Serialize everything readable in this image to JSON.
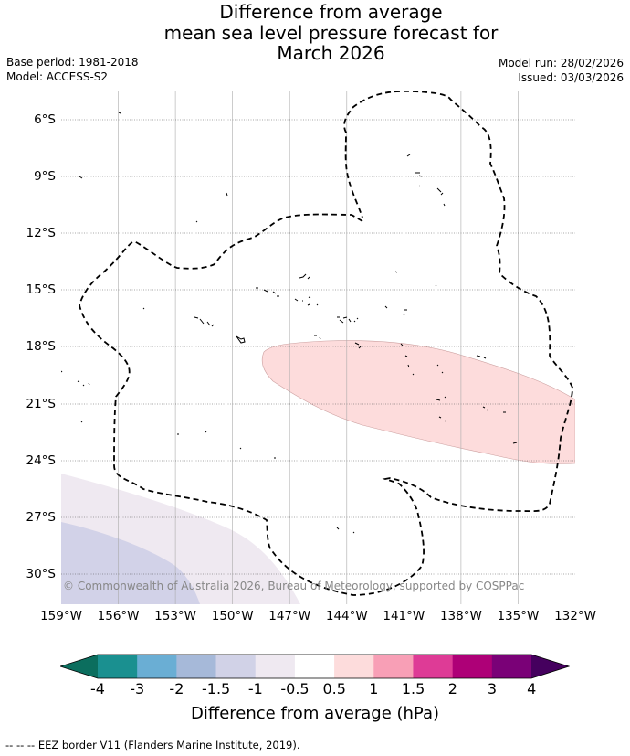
{
  "title": {
    "line1": "Difference from average",
    "line2": "mean sea level pressure forecast for",
    "line3": "March 2026"
  },
  "info": {
    "base_period": "Base period: 1981-2018",
    "model": "Model: ACCESS-S2",
    "model_run": "Model run: 28/02/2026",
    "issued": "Issued: 03/03/2026"
  },
  "map": {
    "lat_labels": [
      "6°S",
      "9°S",
      "12°S",
      "15°S",
      "18°S",
      "21°S",
      "24°S",
      "27°S",
      "30°S"
    ],
    "lon_labels": [
      "159°W",
      "156°W",
      "153°W",
      "150°W",
      "147°W",
      "144°W",
      "141°W",
      "138°W",
      "135°W",
      "132°W"
    ],
    "copyright": "© Commonwealth of Australia 2026, Bureau of Meteorology, supported by COSPPac",
    "positive_anomaly_color": "#fddcdc",
    "negative_anomaly_colors": [
      "#efe9f1",
      "#d2d2e8"
    ],
    "eez_border_color": "#000000"
  },
  "colorbar": {
    "ticks": [
      "-4",
      "-3",
      "-2",
      "-1.5",
      "-1",
      "-0.5",
      "0.5",
      "1",
      "1.5",
      "2",
      "3",
      "4"
    ],
    "low_extend_color": "#0b6e5e",
    "high_extend_color": "#45005e",
    "colors": [
      "#1a9090",
      "#6aaed4",
      "#a6b9d9",
      "#d1d2e7",
      "#efe9f1",
      "#ffffff",
      "#fddcdc",
      "#f89fb6",
      "#de3b96",
      "#ae0077",
      "#7a0177"
    ],
    "label": "Difference from average (hPa)"
  },
  "footnote": "--  --  -- EEZ border V11 (Flanders Marine Institute, 2019)."
}
